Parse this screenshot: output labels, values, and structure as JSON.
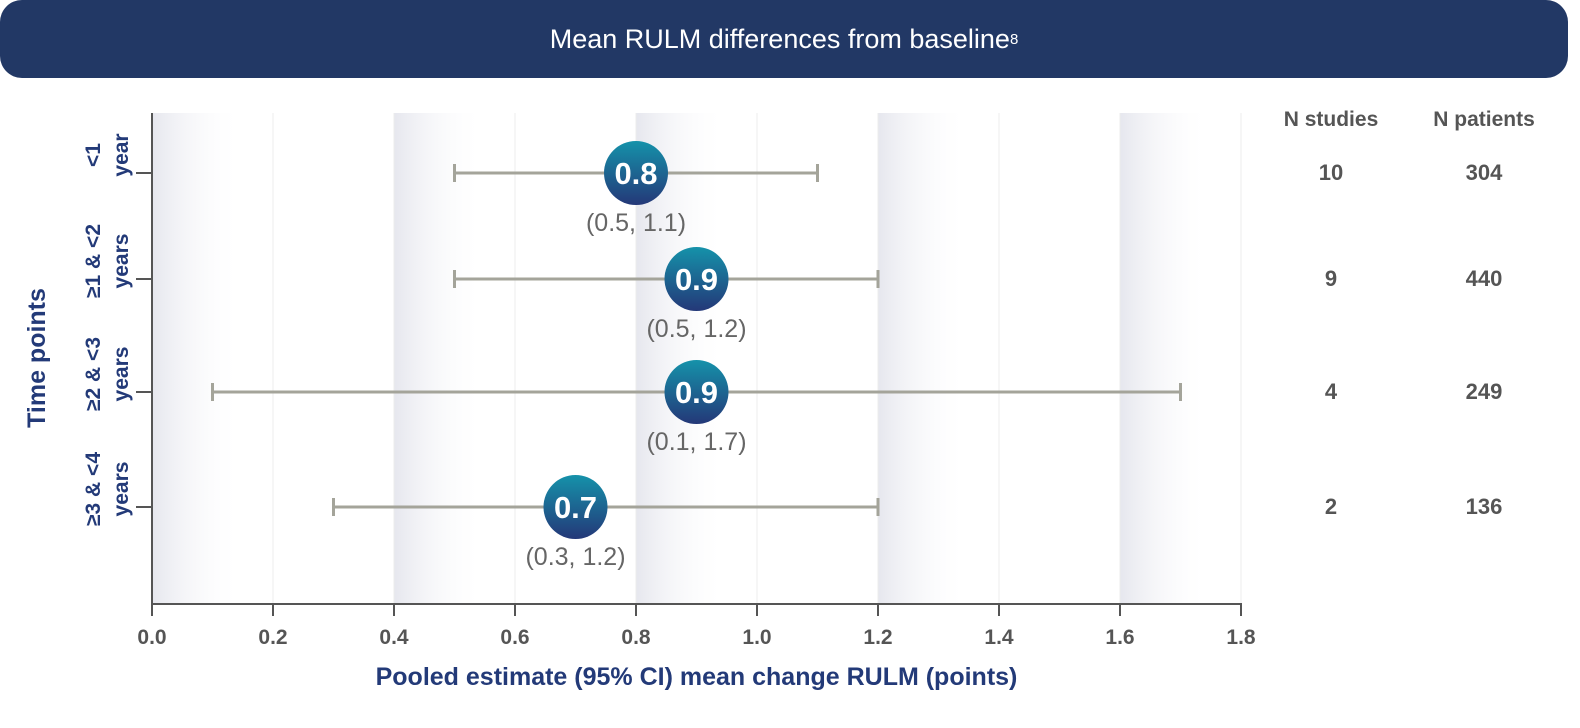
{
  "header": {
    "title": "Mean RULM differences from baseline",
    "superscript": "8"
  },
  "table": {
    "headers": [
      "N studies",
      "N patients"
    ],
    "rows": [
      {
        "n_studies": "10",
        "n_patients": "304"
      },
      {
        "n_studies": "9",
        "n_patients": "440"
      },
      {
        "n_studies": "4",
        "n_patients": "249"
      },
      {
        "n_studies": "2",
        "n_patients": "136"
      }
    ]
  },
  "chart_data": {
    "type": "forest",
    "xlabel": "Pooled estimate (95% CI) mean change RULM (points)",
    "ylabel": "Time points",
    "xlim": [
      0,
      1.8
    ],
    "xticks": [
      "0.0",
      "0.2",
      "0.4",
      "0.6",
      "0.8",
      "1.0",
      "1.2",
      "1.4",
      "1.6",
      "1.8"
    ],
    "grid": true,
    "categories": [
      [
        "<1",
        "year"
      ],
      [
        "≥1 & <2",
        "years"
      ],
      [
        "≥2 & <3",
        "years"
      ],
      [
        "≥3 & <4",
        "years"
      ]
    ],
    "estimates": [
      0.8,
      0.9,
      0.9,
      0.7
    ],
    "ci_lower": [
      0.5,
      0.5,
      0.1,
      0.3
    ],
    "ci_upper": [
      1.1,
      1.2,
      1.7,
      1.2
    ],
    "estimate_labels": [
      "0.8",
      "0.9",
      "0.9",
      "0.7"
    ],
    "ci_labels": [
      "(0.5, 1.1)",
      "(0.5, 1.2)",
      "(0.1, 1.7)",
      "(0.3, 1.2)"
    ],
    "colors": {
      "marker_top": "#1590a8",
      "marker_bottom": "#233a78",
      "ci": "#a4a49a",
      "text": "#233a78"
    }
  }
}
